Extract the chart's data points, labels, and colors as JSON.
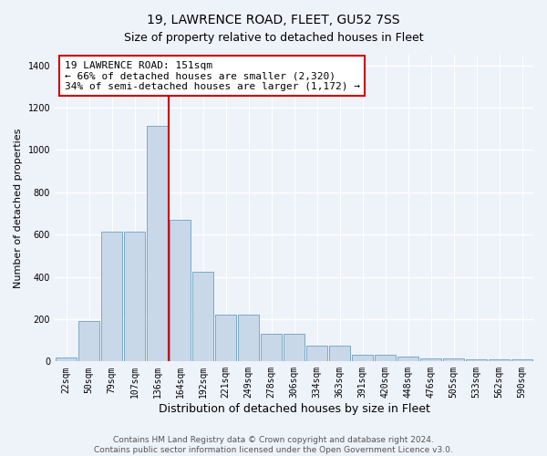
{
  "title": "19, LAWRENCE ROAD, FLEET, GU52 7SS",
  "subtitle": "Size of property relative to detached houses in Fleet",
  "xlabel": "Distribution of detached houses by size in Fleet",
  "ylabel": "Number of detached properties",
  "categories": [
    "22sqm",
    "50sqm",
    "79sqm",
    "107sqm",
    "136sqm",
    "164sqm",
    "192sqm",
    "221sqm",
    "249sqm",
    "278sqm",
    "306sqm",
    "334sqm",
    "363sqm",
    "391sqm",
    "420sqm",
    "448sqm",
    "476sqm",
    "505sqm",
    "533sqm",
    "562sqm",
    "590sqm"
  ],
  "bar_heights": [
    18,
    190,
    615,
    615,
    1115,
    670,
    425,
    220,
    220,
    130,
    130,
    75,
    75,
    30,
    30,
    25,
    15,
    15,
    10,
    10,
    10
  ],
  "bar_color": "#c8d8e8",
  "bar_edge_color": "#7aaac8",
  "vline_color": "#cc0000",
  "annotation_text": "19 LAWRENCE ROAD: 151sqm\n← 66% of detached houses are smaller (2,320)\n34% of semi-detached houses are larger (1,172) →",
  "annotation_box_color": "#ffffff",
  "annotation_box_edge": "#cc0000",
  "ylim": [
    0,
    1450
  ],
  "yticks": [
    0,
    200,
    400,
    600,
    800,
    1000,
    1200,
    1400
  ],
  "bg_color": "#eef2f9",
  "grid_color": "#ffffff",
  "footnote": "Contains HM Land Registry data © Crown copyright and database right 2024.\nContains public sector information licensed under the Open Government Licence v3.0.",
  "title_fontsize": 10,
  "ylabel_fontsize": 8,
  "xlabel_fontsize": 9,
  "tick_fontsize": 7,
  "annotation_fontsize": 8,
  "footnote_fontsize": 6.5
}
